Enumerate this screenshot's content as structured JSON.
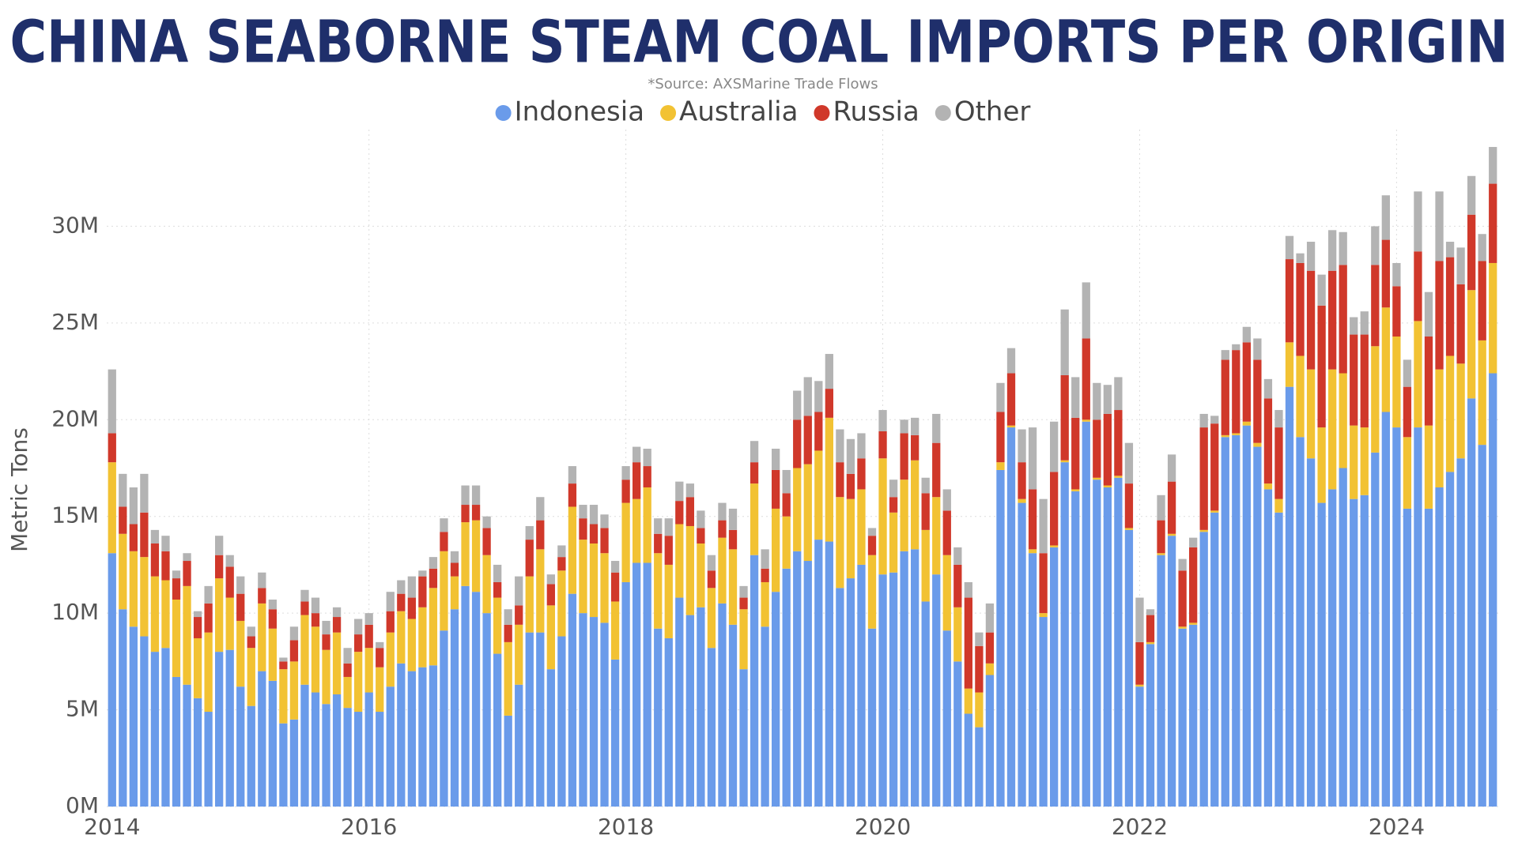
{
  "chart_data": {
    "type": "stacked_bar",
    "title": "CHINA SEABORNE STEAM COAL IMPORTS PER ORIGIN",
    "subtitle": "*Source: AXSMarine Trade Flows",
    "y_label": "Metric Tons",
    "categories": [
      "2014",
      null,
      null,
      null,
      null,
      null,
      null,
      null,
      null,
      null,
      null,
      null,
      null,
      null,
      null,
      null,
      null,
      null,
      null,
      null,
      null,
      null,
      null,
      null,
      "2016",
      null,
      null,
      null,
      null,
      null,
      null,
      null,
      null,
      null,
      null,
      null,
      null,
      null,
      null,
      null,
      null,
      null,
      null,
      null,
      null,
      null,
      null,
      null,
      "2018",
      null,
      null,
      null,
      null,
      null,
      null,
      null,
      null,
      null,
      null,
      null,
      null,
      null,
      null,
      null,
      null,
      null,
      null,
      null,
      null,
      null,
      null,
      null,
      "2020",
      null,
      null,
      null,
      null,
      null,
      null,
      null,
      null,
      null,
      null,
      null,
      null,
      null,
      null,
      null,
      null,
      null,
      null,
      null,
      null,
      null,
      null,
      null,
      "2022",
      null,
      null,
      null,
      null,
      null,
      null,
      null,
      null,
      null,
      null,
      null,
      null,
      null,
      null,
      null,
      null,
      null,
      null,
      null,
      null,
      null,
      null,
      null,
      "2024",
      null,
      null,
      null,
      null,
      null,
      null,
      null,
      null,
      null
    ],
    "series": [
      {
        "name": "Indonesia",
        "color": "#6a9bea",
        "values": [
          13100000.0,
          10200000.0,
          9300000.0,
          8800000.0,
          8000000.0,
          8200000.0,
          6700000.0,
          6300000.0,
          5600000.0,
          4900000.0,
          8000000.0,
          8100000.0,
          6200000.0,
          5200000.0,
          7000000.0,
          6500000.0,
          4300000.0,
          4500000.0,
          6300000.0,
          5900000.0,
          5300000.0,
          5800000.0,
          5100000.0,
          4900000.0,
          5900000.0,
          4900000.0,
          6200000.0,
          7400000.0,
          7000000.0,
          7200000.0,
          7300000.0,
          9100000.0,
          10200000.0,
          11400000.0,
          11100000.0,
          10000000.0,
          7900000.0,
          4700000.0,
          6300000.0,
          9000000.0,
          9000000.0,
          7100000.0,
          8800000.0,
          11000000.0,
          10000000.0,
          9800000.0,
          9500000.0,
          7600000.0,
          11600000.0,
          12600000.0,
          12600000.0,
          9200000.0,
          8700000.0,
          10800000.0,
          9900000.0,
          10300000.0,
          8200000.0,
          10500000.0,
          9400000.0,
          7100000.0,
          13000000.0,
          9300000.0,
          11100000.0,
          12300000.0,
          13200000.0,
          12700000.0,
          13800000.0,
          13700000.0,
          11300000.0,
          11800000.0,
          12500000.0,
          9200000.0,
          12000000.0,
          12100000.0,
          13200000.0,
          13300000.0,
          10600000.0,
          12000000.0,
          9100000.0,
          7500000.0,
          4800000.0,
          4100000.0,
          6800000.0,
          17400000.0,
          19600000.0,
          15700000.0,
          13100000.0,
          9800000.0,
          13400000.0,
          17800000.0,
          16300000.0,
          19900000.0,
          16900000.0,
          16500000.0,
          17000000.0,
          14300000.0,
          6200000.0,
          8400000.0,
          13000000.0,
          14000000.0,
          9200000.0,
          9400000.0,
          14200000.0,
          15200000.0,
          19100000.0,
          19200000.0,
          19700000.0,
          18600000.0,
          16400000.0,
          15200000.0,
          21700000.0,
          19100000.0,
          18000000.0,
          15700000.0,
          16400000.0,
          17500000.0,
          15900000.0,
          16100000.0,
          18300000.0,
          20400000.0,
          19600000.0,
          15400000.0,
          19600000.0,
          15400000.0,
          16500000.0,
          17300000.0,
          18000000.0,
          21100000.0,
          18700000.0,
          22400000.0
        ]
      },
      {
        "name": "Australia",
        "color": "#f2c233",
        "values": [
          4700000.0,
          3900000.0,
          3900000.0,
          4100000.0,
          3900000.0,
          3500000.0,
          4000000.0,
          5100000.0,
          3100000.0,
          4100000.0,
          3800000.0,
          2700000.0,
          3400000.0,
          3000000.0,
          3500000.0,
          2700000.0,
          2800000.0,
          3000000.0,
          3600000.0,
          3400000.0,
          2800000.0,
          3200000.0,
          1600000.0,
          3100000.0,
          2300000.0,
          2300000.0,
          2800000.0,
          2700000.0,
          2700000.0,
          3100000.0,
          4000000.0,
          4100000.0,
          1700000.0,
          3300000.0,
          3700000.0,
          3000000.0,
          2900000.0,
          3800000.0,
          3100000.0,
          2900000.0,
          4300000.0,
          3300000.0,
          3400000.0,
          4500000.0,
          3800000.0,
          3800000.0,
          3600000.0,
          3000000.0,
          4100000.0,
          3300000.0,
          3900000.0,
          3900000.0,
          3800000.0,
          3800000.0,
          4600000.0,
          3300000.0,
          3100000.0,
          3400000.0,
          3900000.0,
          3100000.0,
          3700000.0,
          2300000.0,
          4300000.0,
          2700000.0,
          4300000.0,
          5000000.0,
          4600000.0,
          6400000.0,
          4700000.0,
          4100000.0,
          3900000.0,
          3800000.0,
          6000000.0,
          3100000.0,
          3700000.0,
          4600000.0,
          3700000.0,
          4000000.0,
          3900000.0,
          2800000.0,
          1300000.0,
          1800000.0,
          600000.0,
          400000.0,
          100000.0,
          200000.0,
          200000.0,
          200000.0,
          100000.0,
          100000.0,
          100000.0,
          100000.0,
          100000.0,
          100000.0,
          100000.0,
          100000.0,
          100000.0,
          100000.0,
          100000.0,
          100000.0,
          100000.0,
          100000.0,
          100000.0,
          100000.0,
          100000.0,
          100000.0,
          200000.0,
          200000.0,
          300000.0,
          700000.0,
          2300000.0,
          4200000.0,
          4600000.0,
          3900000.0,
          6200000.0,
          4900000.0,
          3800000.0,
          3500000.0,
          5500000.0,
          5400000.0,
          4700000.0,
          3700000.0,
          5500000.0,
          4300000.0,
          6100000.0,
          6000000.0,
          4900000.0,
          5600000.0,
          5400000.0,
          5700000.0
        ]
      },
      {
        "name": "Russia",
        "color": "#d0382a",
        "values": [
          1500000.0,
          1400000.0,
          1400000.0,
          2300000.0,
          1700000.0,
          1500000.0,
          1100000.0,
          1300000.0,
          1100000.0,
          1500000.0,
          1200000.0,
          1600000.0,
          1400000.0,
          600000.0,
          800000.0,
          1000000.0,
          400000.0,
          1100000.0,
          700000.0,
          700000.0,
          800000.0,
          800000.0,
          700000.0,
          900000.0,
          1200000.0,
          1000000.0,
          1100000.0,
          900000.0,
          1100000.0,
          1600000.0,
          1000000.0,
          1000000.0,
          700000.0,
          900000.0,
          800000.0,
          1400000.0,
          800000.0,
          900000.0,
          1000000.0,
          1900000.0,
          1500000.0,
          1100000.0,
          700000.0,
          1200000.0,
          1100000.0,
          1000000.0,
          1300000.0,
          1500000.0,
          1200000.0,
          1900000.0,
          1100000.0,
          1000000.0,
          1500000.0,
          1200000.0,
          1500000.0,
          800000.0,
          900000.0,
          900000.0,
          1000000.0,
          600000.0,
          1100000.0,
          700000.0,
          2000000.0,
          1200000.0,
          2500000.0,
          2500000.0,
          2000000.0,
          1500000.0,
          1800000.0,
          1300000.0,
          1600000.0,
          1000000.0,
          1400000.0,
          800000.0,
          2400000.0,
          1300000.0,
          1900000.0,
          2800000.0,
          2300000.0,
          2200000.0,
          4700000.0,
          2400000.0,
          1600000.0,
          2600000.0,
          2700000.0,
          1900000.0,
          3100000.0,
          3100000.0,
          3800000.0,
          4400000.0,
          3700000.0,
          4200000.0,
          3000000.0,
          3700000.0,
          3400000.0,
          2300000.0,
          2200000.0,
          1400000.0,
          1700000.0,
          2700000.0,
          2900000.0,
          3900000.0,
          5300000.0,
          4500000.0,
          3900000.0,
          4300000.0,
          4100000.0,
          4300000.0,
          4400000.0,
          3700000.0,
          4300000.0,
          4800000.0,
          5100000.0,
          6300000.0,
          5100000.0,
          5600000.0,
          4700000.0,
          4800000.0,
          4200000.0,
          3500000.0,
          2600000.0,
          2600000.0,
          3600000.0,
          4600000.0,
          5600000.0,
          5100000.0,
          4100000.0,
          3900000.0,
          4100000.0,
          4100000.0
        ]
      },
      {
        "name": "Other",
        "color": "#b3b3b3",
        "values": [
          3300000.0,
          1700000.0,
          1900000.0,
          2000000.0,
          700000.0,
          800000.0,
          400000.0,
          400000.0,
          300000.0,
          900000.0,
          1000000.0,
          600000.0,
          900000.0,
          500000.0,
          800000.0,
          500000.0,
          200000.0,
          700000.0,
          600000.0,
          800000.0,
          700000.0,
          500000.0,
          800000.0,
          800000.0,
          600000.0,
          300000.0,
          1000000.0,
          700000.0,
          1100000.0,
          300000.0,
          600000.0,
          700000.0,
          600000.0,
          1000000.0,
          1000000.0,
          600000.0,
          900000.0,
          800000.0,
          1500000.0,
          700000.0,
          1200000.0,
          500000.0,
          600000.0,
          900000.0,
          700000.0,
          1000000.0,
          700000.0,
          600000.0,
          700000.0,
          800000.0,
          900000.0,
          800000.0,
          900000.0,
          1000000.0,
          700000.0,
          900000.0,
          800000.0,
          900000.0,
          1100000.0,
          600000.0,
          1100000.0,
          1000000.0,
          1100000.0,
          1200000.0,
          1500000.0,
          2000000.0,
          1600000.0,
          1800000.0,
          1700000.0,
          1800000.0,
          1300000.0,
          400000.0,
          1100000.0,
          900000.0,
          700000.0,
          900000.0,
          800000.0,
          1500000.0,
          1100000.0,
          900000.0,
          800000.0,
          700000.0,
          1500000.0,
          1500000.0,
          1300000.0,
          1700000.0,
          3200000.0,
          2800000.0,
          2600000.0,
          3400000.0,
          2100000.0,
          2900000.0,
          1900000.0,
          1500000.0,
          1700000.0,
          2100000.0,
          2300000.0,
          300000.0,
          1300000.0,
          1400000.0,
          600000.0,
          500000.0,
          700000.0,
          400000.0,
          500000.0,
          300000.0,
          800000.0,
          1100000.0,
          1000000.0,
          900000.0,
          1200000.0,
          500000.0,
          1500000.0,
          1600000.0,
          2100000.0,
          1700000.0,
          900000.0,
          1200000.0,
          2000000.0,
          2300000.0,
          1200000.0,
          1400000.0,
          3100000.0,
          2300000.0,
          3600000.0,
          800000.0,
          1900000.0,
          2000000.0,
          1400000.0,
          1900000.0
        ]
      }
    ],
    "ylim": [
      0,
      35000000
    ],
    "yticks": [
      {
        "value": 0,
        "label": "0M"
      },
      {
        "value": 5000000,
        "label": "5M"
      },
      {
        "value": 10000000,
        "label": "10M"
      },
      {
        "value": 15000000,
        "label": "15M"
      },
      {
        "value": 20000000,
        "label": "20M"
      },
      {
        "value": 25000000,
        "label": "25M"
      },
      {
        "value": 30000000,
        "label": "30M"
      }
    ],
    "grid": true,
    "legend": "top"
  }
}
